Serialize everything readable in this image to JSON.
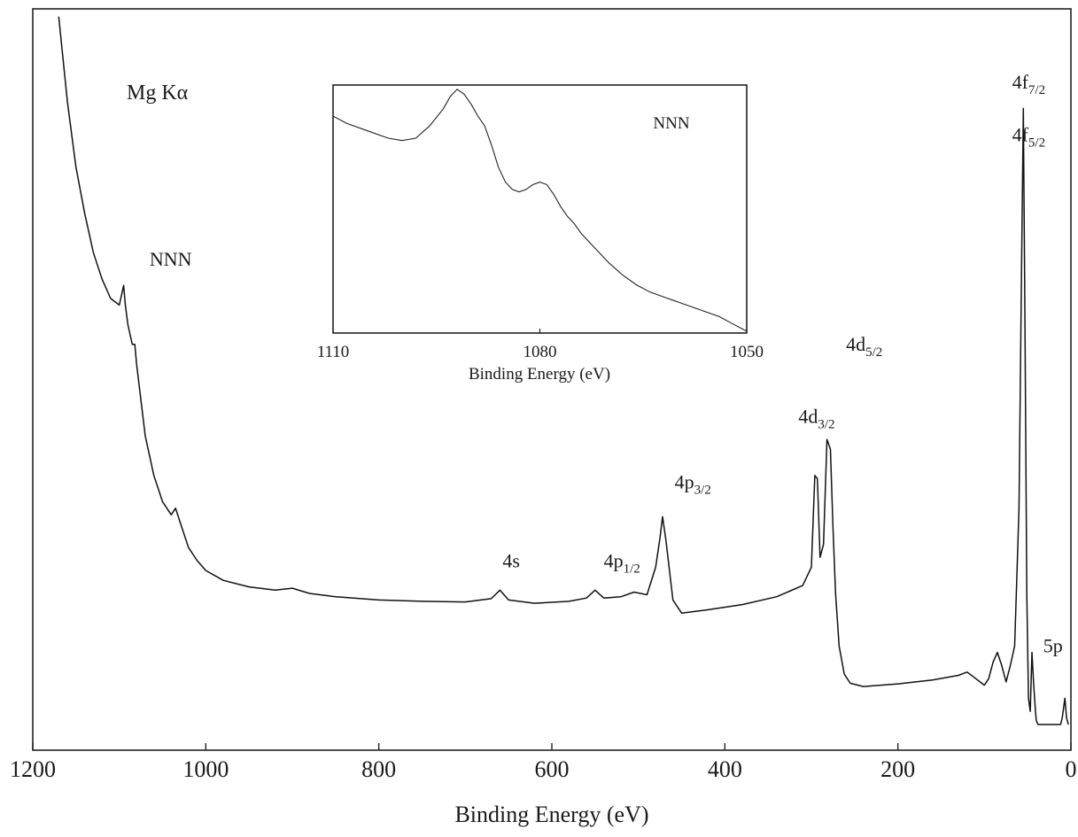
{
  "chart_data": [
    {
      "type": "line",
      "xlabel": "Binding Energy (eV)",
      "ylabel": "",
      "xlim": [
        1200,
        0
      ],
      "x_reversed": true,
      "xticks": [
        1200,
        1000,
        800,
        600,
        400,
        200,
        0
      ],
      "xtick_labels": [
        "1200",
        "1000",
        "800",
        "600",
        "400",
        "200",
        "0"
      ],
      "ylim": [
        0,
        100
      ],
      "grid": false,
      "source_label": "Mg Kα",
      "series": [
        {
          "x": [
            1170,
            1160,
            1150,
            1140,
            1130,
            1120,
            1110,
            1100,
            1095,
            1093,
            1090,
            1085,
            1082,
            1080,
            1070,
            1060,
            1050,
            1040,
            1035,
            1030,
            1025,
            1020,
            1010,
            1000,
            980,
            950,
            920,
            900,
            880,
            850,
            800,
            750,
            700,
            670,
            660,
            650,
            620,
            580,
            560,
            550,
            540,
            520,
            505,
            490,
            480,
            475,
            472,
            468,
            460,
            450,
            420,
            380,
            340,
            310,
            300,
            296,
            293,
            290,
            286,
            282,
            278,
            275,
            272,
            268,
            262,
            255,
            240,
            200,
            160,
            130,
            120,
            110,
            100,
            95,
            90,
            85,
            80,
            75,
            70,
            65,
            60,
            57,
            55,
            53,
            51,
            49,
            47,
            45,
            43,
            41,
            40,
            38,
            36,
            30,
            20,
            15,
            12,
            10,
            7,
            5,
            3
          ],
          "y": [
            108,
            95,
            85,
            78,
            72,
            68,
            65,
            64,
            67,
            64,
            61,
            58,
            58,
            55,
            44,
            38,
            34,
            32,
            33,
            31,
            29,
            27,
            25,
            23.5,
            22,
            21,
            20.5,
            20.8,
            20,
            19.5,
            19,
            18.8,
            18.7,
            19.2,
            20.5,
            19,
            18.5,
            18.8,
            19.3,
            20.5,
            19.3,
            19.5,
            20.2,
            19.8,
            24,
            28.5,
            31.7,
            28,
            19,
            17,
            17.5,
            18.3,
            19.5,
            21.2,
            24,
            38,
            37.5,
            25.5,
            27.5,
            43.5,
            42,
            30,
            20,
            12,
            7.7,
            6.3,
            5.8,
            6.2,
            6.8,
            7.5,
            8,
            7,
            6,
            7,
            9.5,
            11,
            9,
            6.5,
            9,
            12,
            33,
            70,
            94,
            60,
            20,
            4,
            2,
            11,
            6,
            2,
            0.6,
            0,
            0,
            0,
            0,
            0,
            0,
            1,
            4,
            1,
            0
          ]
        }
      ],
      "annotations": [
        {
          "main": "NNN",
          "sub": "",
          "x": 1065,
          "y": 70
        },
        {
          "main": "4s",
          "sub": "",
          "x": 657,
          "y": 24
        },
        {
          "main": "4p",
          "sub": "1/2",
          "x": 540,
          "y": 24
        },
        {
          "main": "4p",
          "sub": "3/2",
          "x": 458,
          "y": 36
        },
        {
          "main": "4d",
          "sub": "3/2",
          "x": 315,
          "y": 46
        },
        {
          "main": "4d",
          "sub": "5/2",
          "x": 260,
          "y": 57
        },
        {
          "main": "4f",
          "sub": "7/2",
          "x": 68,
          "y": 97
        },
        {
          "main": "4f",
          "sub": "5/2",
          "x": 68,
          "y": 89
        },
        {
          "main": "5p",
          "sub": "",
          "x": 32,
          "y": 11
        }
      ]
    },
    {
      "type": "line",
      "inset": true,
      "xlabel": "Binding Energy (eV)",
      "ylabel": "",
      "xlim": [
        1110,
        1050
      ],
      "x_reversed": true,
      "xticks": [
        1110,
        1080,
        1050
      ],
      "xtick_labels": [
        "1110",
        "1080",
        "1050"
      ],
      "ylim": [
        0,
        100
      ],
      "grid": false,
      "label": "NNN",
      "series": [
        {
          "x": [
            1110,
            1108,
            1105,
            1102,
            1100,
            1098,
            1096,
            1094,
            1093,
            1092,
            1091,
            1090,
            1089,
            1088,
            1087,
            1086,
            1085,
            1084,
            1083,
            1082,
            1081,
            1080,
            1079,
            1078,
            1077,
            1076,
            1075,
            1074,
            1072,
            1070,
            1068,
            1066,
            1064,
            1062,
            1060,
            1058,
            1056,
            1054,
            1052,
            1050
          ],
          "y": [
            88,
            85,
            82,
            79,
            78,
            79,
            84,
            91,
            96,
            99,
            97,
            93,
            88,
            84,
            76,
            67,
            61,
            58,
            57,
            58,
            60,
            61,
            60,
            56,
            51,
            47,
            44,
            40,
            34,
            28,
            23,
            19,
            16,
            14,
            12,
            10,
            8,
            6,
            3,
            0
          ]
        }
      ]
    }
  ]
}
